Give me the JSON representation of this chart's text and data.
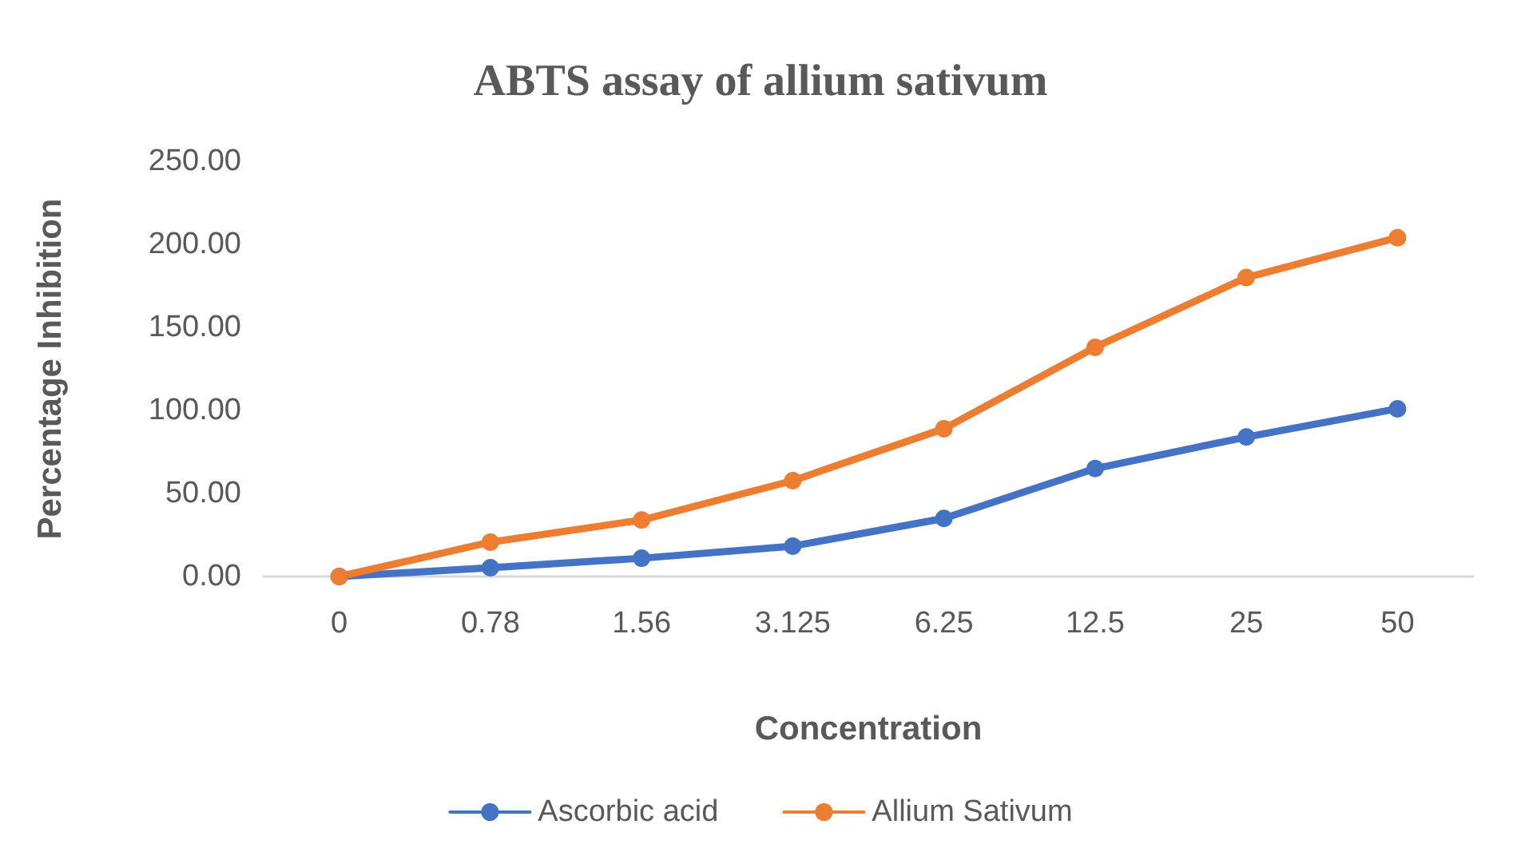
{
  "chart_data": {
    "type": "line",
    "title": "ABTS assay of allium sativum",
    "xlabel": "Concentration",
    "ylabel": "Percentage Inhibition",
    "categories": [
      "0",
      "0.78",
      "1.56",
      "3.125",
      "6.25",
      "12.5",
      "25",
      "50"
    ],
    "series": [
      {
        "name": "Ascorbic acid",
        "color": "#4472c4",
        "values": [
          0,
          5.3,
          11,
          18.3,
          35,
          65,
          84,
          101
        ]
      },
      {
        "name": "Allium Sativum",
        "color": "#ed7d31",
        "values": [
          0,
          20.7,
          34,
          57.7,
          89,
          138,
          180,
          204
        ]
      }
    ],
    "ylim": [
      0,
      250
    ],
    "yticks": [
      {
        "value": 0,
        "label": "0.00"
      },
      {
        "value": 50,
        "label": "50.00"
      },
      {
        "value": 100,
        "label": "100.00"
      },
      {
        "value": 150,
        "label": "150.00"
      },
      {
        "value": 200,
        "label": "200.00"
      },
      {
        "value": 250,
        "label": "250.00"
      }
    ],
    "grid": false,
    "legend": "bottom",
    "marker": "circle",
    "line_style": "solid"
  }
}
